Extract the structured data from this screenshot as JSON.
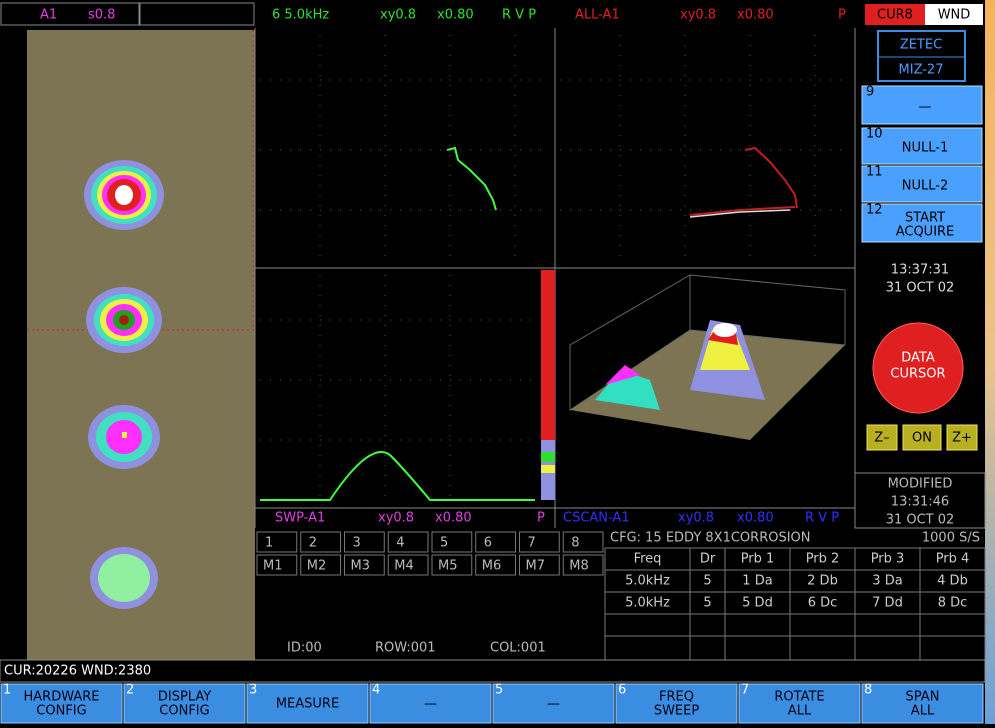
{
  "top_bar": {
    "channel": "A1",
    "scale": "s0.8",
    "lissajous": {
      "label": "6 5.0kHz",
      "xy": "xy0.8",
      "x": "x0.80",
      "flags": "R V P"
    },
    "mix": {
      "label": "ALL-A1",
      "xy": "xy0.8",
      "x": "x0.80",
      "flags": "P"
    },
    "cursor": "CUR8",
    "window": "WND"
  },
  "brand": {
    "line1": "ZETEC",
    "line2": "MIZ-27"
  },
  "side_buttons": [
    {
      "num": "9",
      "lines": [
        "—"
      ]
    },
    {
      "num": "10",
      "lines": [
        "NULL-1"
      ]
    },
    {
      "num": "11",
      "lines": [
        "NULL-2"
      ]
    },
    {
      "num": "12",
      "lines": [
        "START",
        "ACQUIRE"
      ]
    }
  ],
  "clock": {
    "time": "13:37:31",
    "date": "31 OCT 02"
  },
  "data_cursor": {
    "lines": [
      "DATA",
      "CURSOR"
    ]
  },
  "zoom": [
    "Z–",
    "ON",
    "Z+"
  ],
  "modified": {
    "label": "MODIFIED",
    "time": "13:31:46",
    "date": "31 OCT 02"
  },
  "sweep_label": {
    "name": "SWP-A1",
    "xy": "xy0.8",
    "x": "x0.80",
    "flags": "P"
  },
  "cscan_label": {
    "name": "CSCAN-A1",
    "xy": "xy0.8",
    "x": "x0.80",
    "flags": "R V P"
  },
  "channels": {
    "numbers": [
      "1",
      "2",
      "3",
      "4",
      "5",
      "6",
      "7",
      "8"
    ],
    "mixes": [
      "M1",
      "M2",
      "M3",
      "M4",
      "M5",
      "M6",
      "M7",
      "M8"
    ]
  },
  "position": {
    "id": "ID:00",
    "row": "ROW:001",
    "col": "COL:001"
  },
  "config": {
    "title": "CFG: 15 EDDY 8X1CORROSION",
    "rate": "1000 S/S",
    "header": [
      "Freq",
      "Dr",
      "Prb 1",
      "Prb 2",
      "Prb 3",
      "Prb 4"
    ],
    "rows": [
      [
        "5.0kHz",
        "5",
        "1 Da",
        "2 Db",
        "3 Da",
        "4 Db"
      ],
      [
        "5.0kHz",
        "5",
        "5 Dd",
        "6 Dc",
        "7 Dd",
        "8 Dc"
      ]
    ]
  },
  "status": "CUR:20226 WND:2380",
  "function_keys": [
    {
      "num": "1",
      "lines": [
        "HARDWARE",
        "CONFIG"
      ]
    },
    {
      "num": "2",
      "lines": [
        "DISPLAY",
        "CONFIG"
      ]
    },
    {
      "num": "3",
      "lines": [
        "MEASURE"
      ]
    },
    {
      "num": "4",
      "lines": [
        "—"
      ]
    },
    {
      "num": "5",
      "lines": [
        "—"
      ]
    },
    {
      "num": "6",
      "lines": [
        "FREQ",
        "SWEEP"
      ]
    },
    {
      "num": "7",
      "lines": [
        "ROTATE",
        "ALL"
      ]
    },
    {
      "num": "8",
      "lines": [
        "SPAN",
        "ALL"
      ]
    }
  ]
}
